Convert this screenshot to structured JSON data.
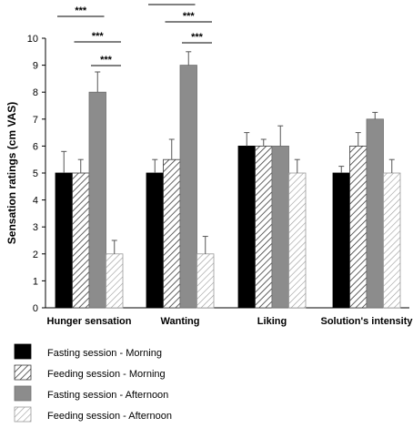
{
  "chart_data": {
    "type": "bar",
    "ylabel": "Sensation ratings (cm VAS)",
    "ylim": [
      0,
      10
    ],
    "yticks": [
      0,
      1,
      2,
      3,
      4,
      5,
      6,
      7,
      8,
      9,
      10
    ],
    "categories": [
      "Hunger sensation",
      "Wanting",
      "Liking",
      "Solution's intensity"
    ],
    "series": [
      {
        "name": "Fasting session - Morning",
        "fill": "black",
        "values": [
          5,
          5,
          6,
          5
        ],
        "errors": [
          0.8,
          0.5,
          0.5,
          0.25
        ]
      },
      {
        "name": "Feeding session - Morning",
        "fill": "hatch",
        "values": [
          5,
          5.5,
          6,
          6
        ],
        "errors": [
          0.5,
          0.75,
          0.25,
          0.5
        ]
      },
      {
        "name": "Fasting session - Afternoon",
        "fill": "gray",
        "values": [
          8,
          9,
          6,
          7
        ],
        "errors": [
          0.75,
          0.5,
          0.75,
          0.25
        ]
      },
      {
        "name": "Feeding session - Afternoon",
        "fill": "hatch-light",
        "values": [
          2,
          2,
          5,
          5
        ],
        "errors": [
          0.5,
          0.65,
          0.5,
          0.5
        ]
      }
    ],
    "significance": [
      {
        "category": 0,
        "from": 0,
        "to": 2,
        "label": "***"
      },
      {
        "category": 0,
        "from": 1,
        "to": 3,
        "label": "***"
      },
      {
        "category": 0,
        "from": 2,
        "to": 3,
        "label": "***"
      },
      {
        "category": 1,
        "from": 0,
        "to": 2,
        "label": "***"
      },
      {
        "category": 1,
        "from": 1,
        "to": 3,
        "label": "***"
      },
      {
        "category": 1,
        "from": 2,
        "to": 3,
        "label": "***"
      }
    ],
    "colors": {
      "black": "#000000",
      "gray": "#8c8c8c",
      "hatch": "#3a3a3a",
      "hatch_light": "#9a9a9a"
    },
    "grid": false,
    "legend_position": "bottom-left"
  }
}
